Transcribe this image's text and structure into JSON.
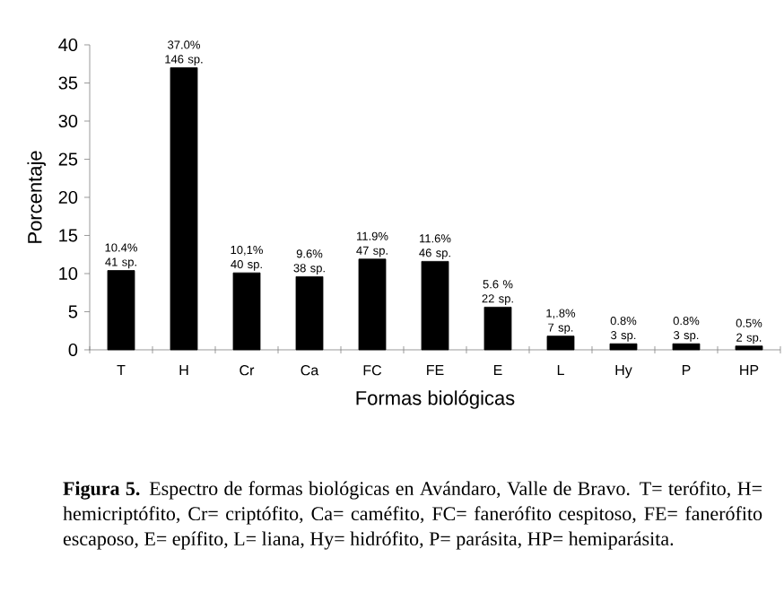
{
  "chart_data": {
    "type": "bar",
    "xlabel": "Formas biológicas",
    "ylabel": "Porcentaje",
    "categories": [
      "T",
      "H",
      "Cr",
      "Ca",
      "FC",
      "FE",
      "E",
      "L",
      "Hy",
      "P",
      "HP"
    ],
    "values": [
      10.4,
      37.0,
      10.1,
      9.6,
      11.9,
      11.6,
      5.6,
      1.8,
      0.8,
      0.8,
      0.5
    ],
    "value_labels": [
      "10.4% 41 sp.",
      "37.0% 146 sp.",
      "10,1% 40 sp.",
      "9.6% 38 sp.",
      "11.9% 47 sp.",
      "11.6% 46 sp.",
      "5.6 % 22 sp.",
      "1,.8% 7 sp.",
      "0.8% 3 sp.",
      "0.8% 3 sp.",
      "0.5% 2 sp."
    ],
    "color": "#000000",
    "ylim": [
      0,
      40
    ],
    "yticks": [
      0,
      5,
      10,
      15,
      20,
      25,
      30,
      35,
      40
    ],
    "annotations": [
      "**Figura 5.** Espectro de formas biológicas en Avándaro, Valle de Bravo. T= terófito, H= hemicriptófito, Cr= criptófito, Ca= caméfito, FC= fanerófito cespitoso, FE= fanerófito escaposo, E= epífito, L= liana, Hy= hidrófito, P= parásita, HP= hemiparásita."
    ]
  }
}
